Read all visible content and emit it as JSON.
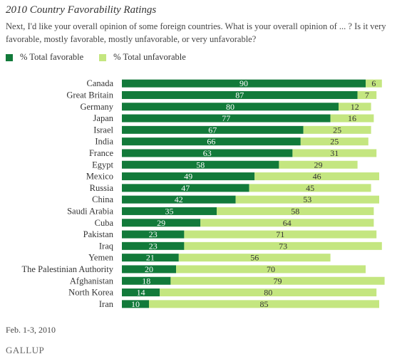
{
  "header": {
    "title": "2010 Country Favorability Ratings",
    "question": "Next, I'd like your overall opinion of some foreign countries. What is your overall opinion of ... ? Is it very favorable, mostly favorable, mostly unfavorable, or very unfavorable?"
  },
  "legend": {
    "favorable_label": "% Total favorable",
    "unfavorable_label": "% Total unfavorable"
  },
  "colors": {
    "favorable": "#127a3a",
    "unfavorable": "#c4e680",
    "favorable_text": "#ffffff",
    "unfavorable_text": "#333333"
  },
  "footer": {
    "date": "Feb. 1-3, 2010",
    "logo": "GALLUP"
  },
  "chart_data": {
    "type": "bar",
    "orientation": "horizontal",
    "stacked": true,
    "categories": [
      "Canada",
      "Great Britain",
      "Germany",
      "Japan",
      "Israel",
      "India",
      "France",
      "Egypt",
      "Mexico",
      "Russia",
      "China",
      "Saudi Arabia",
      "Cuba",
      "Pakistan",
      "Iraq",
      "Yemen",
      "The Palestinian Authority",
      "Afghanistan",
      "North Korea",
      "Iran"
    ],
    "series": [
      {
        "name": "% Total favorable",
        "values": [
          90,
          87,
          80,
          77,
          67,
          66,
          63,
          58,
          49,
          47,
          42,
          35,
          29,
          23,
          23,
          21,
          20,
          18,
          14,
          10
        ]
      },
      {
        "name": "% Total unfavorable",
        "values": [
          6,
          7,
          12,
          16,
          25,
          25,
          31,
          29,
          46,
          45,
          53,
          58,
          64,
          71,
          73,
          56,
          70,
          79,
          80,
          85
        ]
      }
    ],
    "xlim": [
      0,
      100
    ],
    "grid": false
  }
}
